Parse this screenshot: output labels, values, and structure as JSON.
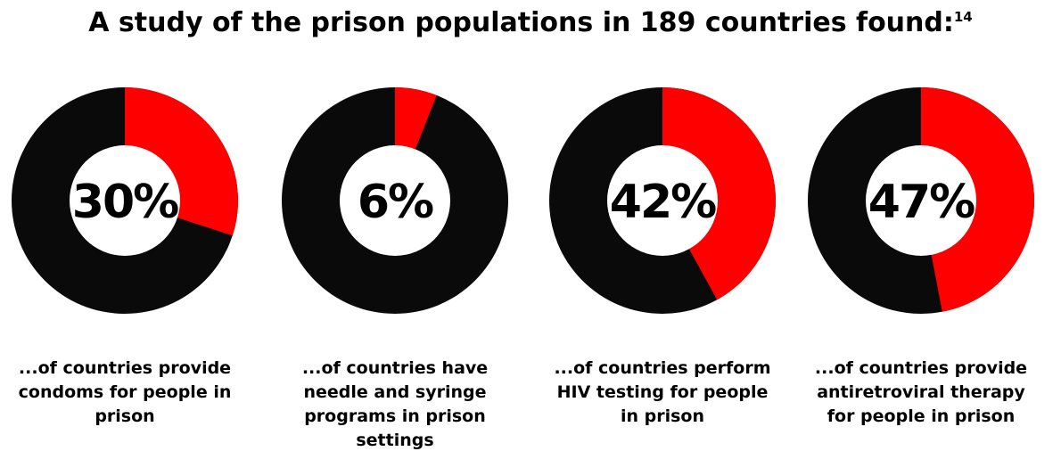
{
  "title": "A study of the prison populations in 189 countries found:",
  "title_superscript": "14",
  "colors": {
    "highlight": "#ff0000",
    "remainder": "#0a0a0a",
    "center": "#ffffff"
  },
  "chart_data": [
    {
      "type": "pie",
      "percent": 30,
      "center_label": "30%",
      "caption": "...of countries provide condoms for people in prison"
    },
    {
      "type": "pie",
      "percent": 6,
      "center_label": "6%",
      "caption": "...of countries have needle and syringe programs in prison settings"
    },
    {
      "type": "pie",
      "percent": 42,
      "center_label": "42%",
      "caption": "...of countries perform HIV testing for people in prison"
    },
    {
      "type": "pie",
      "percent": 47,
      "center_label": "47%",
      "caption": "...of countries provide antiretroviral therapy for people in prison"
    }
  ]
}
